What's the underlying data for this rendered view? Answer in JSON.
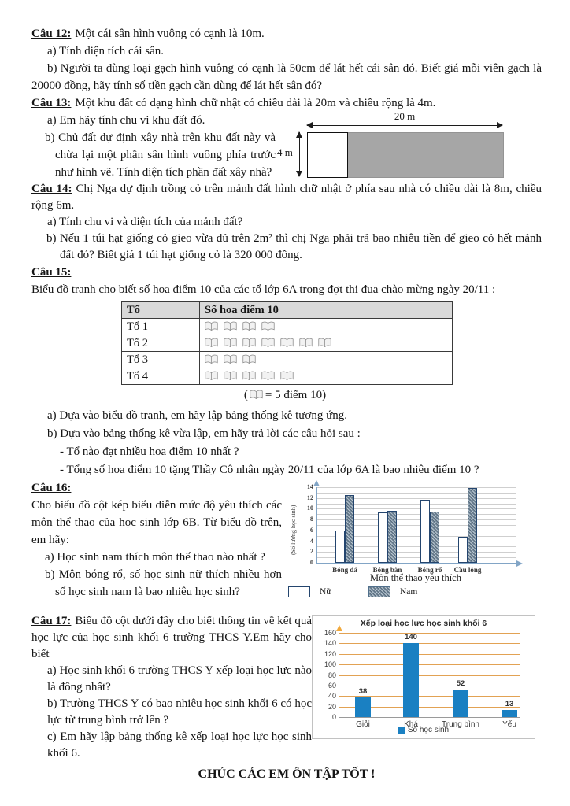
{
  "doc": {
    "q12": {
      "label": "Câu 12:",
      "intro": "Một cái sân hình vuông có cạnh là 10m.",
      "a": "a)  Tính diện tích cái sân.",
      "b": "b)  Người ta dùng loại gạch hình vuông có cạnh là 50cm để lát hết cái sân đó. Biết giá mỗi viên gạch là 20000 đồng, hãy tính số tiền gạch cần dùng để lát hết sân đó?"
    },
    "q13": {
      "label": "Câu 13:",
      "intro": "Một khu đất có dạng hình chữ nhật có chiều dài là 20m và chiều rộng là 4m.",
      "a": "a)  Em hãy tính chu vi khu đất đó.",
      "b": "b)  Chủ đất dự định xây nhà trên khu đất này và chừa lại một phần sân hình vuông phía trước như hình vẽ. Tính diện tích phần đất xây nhà?",
      "figure": {
        "length_label": "20 m",
        "width_label": "4 m"
      }
    },
    "q14": {
      "label": "Câu 14:",
      "intro": "Chị Nga dự định trồng cỏ trên mảnh đất hình chữ nhật ở phía sau nhà có chiều dài là 8m, chiều rộng 6m.",
      "a": "a)  Tính chu vi và diện tích của mảnh đất?",
      "b": "b)  Nếu 1 túi hạt giống cỏ gieo vừa đủ trên 2m² thì chị Nga phải trả bao nhiêu tiền để gieo cỏ hết mảnh đất đó? Biết giá 1 túi hạt giống cỏ là 320 000 đồng."
    },
    "q15": {
      "label": "Câu 15:",
      "intro": "Biểu đồ tranh cho biết số hoa điểm 10 của các tổ lớp 6A trong đợt thi đua chào mừng ngày 20/11 :",
      "table": {
        "headers": [
          "Tổ",
          "Số hoa điểm 10"
        ],
        "rows": [
          {
            "label": "Tổ 1",
            "books": 4
          },
          {
            "label": "Tổ 2",
            "books": 7
          },
          {
            "label": "Tổ 3",
            "books": 3
          },
          {
            "label": "Tổ 4",
            "books": 5
          }
        ],
        "unit_note": "1 biểu tượng = 5 điểm 10"
      },
      "caption_open": "(",
      "caption_close": "= 5 điểm 10)",
      "a": "a)  Dựa vào biểu đồ tranh, em hãy lập bảng thống kê tương ứng.",
      "b": "b)  Dựa vào bảng thống kê vừa lập, em hãy trả lời các câu hỏi sau :",
      "b1": "- Tổ nào đạt nhiều hoa điểm 10 nhất ?",
      "b2": "- Tổng số hoa điểm 10 tặng Thầy Cô nhân ngày 20/11 của lớp 6A là bao nhiêu điểm 10 ?"
    },
    "q16": {
      "label": "Câu 16:",
      "intro": "Cho biểu đồ cột kép biểu diễn mức độ yêu thích các môn thể thao của học sinh lớp 6B. Từ biểu đồ trên, em hãy:",
      "a": "a)  Học sinh nam thích môn thể thao nào nhất ?",
      "b": "b)  Môn bóng rổ, số học sinh nữ thích nhiều hơn số học sinh nam là bao nhiêu học sinh?"
    },
    "q17": {
      "label": "Câu 17:",
      "intro": "Biểu đồ cột dưới đây cho biết thông tin về kết quả học lực của học sinh khối 6 trường THCS Y.Em hãy cho biết",
      "a": "a) Học sinh khối 6 trường THCS Y xếp loại học lực nào là đông nhất?",
      "b": "b) Trường THCS Y có bao nhiêu học sinh khối 6 có học lực từ trung bình trở lên ?",
      "c": "c) Em hãy lập bảng thống kê xếp loại học lực học sinh khối 6."
    },
    "footer": "CHÚC CÁC EM ÔN TẬP TỐT !"
  },
  "chart_data": [
    {
      "type": "bar",
      "title": "",
      "xlabel": "Môn thể thao yêu thích",
      "ylabel": "(Số lượng học sinh)",
      "categories": [
        "Bóng đá",
        "Bóng bàn",
        "Bóng rổ",
        "Cầu lông"
      ],
      "series": [
        {
          "name": "Nữ",
          "values": [
            6,
            9.4,
            11.7,
            4.8
          ]
        },
        {
          "name": "Nam",
          "values": [
            12.6,
            9.6,
            9.5,
            13.9
          ]
        }
      ],
      "ylim": [
        0,
        14
      ],
      "yticks": [
        0,
        2,
        4,
        6,
        8,
        10,
        12,
        14
      ],
      "grid": true,
      "legend_position": "bottom",
      "colors": {
        "nu_fill": "#ffffff",
        "nam_fill": "#9eb0be",
        "bar_border": "#24456e",
        "axis": "#82a5c6"
      }
    },
    {
      "type": "bar",
      "title": "Xếp loại học lực học sinh khối 6",
      "xlabel": "",
      "ylabel": "",
      "categories": [
        "Giỏi",
        "Khá",
        "Trung bình",
        "Yếu"
      ],
      "values": [
        38,
        140,
        52,
        13
      ],
      "value_labels": [
        "38",
        "140",
        "52",
        "13"
      ],
      "legend": "Số học sinh",
      "ylim": [
        0,
        160
      ],
      "yticks": [
        0,
        20,
        40,
        60,
        80,
        100,
        120,
        140,
        160
      ],
      "grid": true,
      "legend_position": "bottom",
      "colors": {
        "bar": "#1a80c2",
        "gridline": "#e2a254",
        "axis_arrow": "#f2a93b"
      }
    }
  ],
  "colors": {
    "table_header_bg": "#d9d9d9",
    "figure_fill": "#a6a6a6",
    "text": "#151515"
  }
}
